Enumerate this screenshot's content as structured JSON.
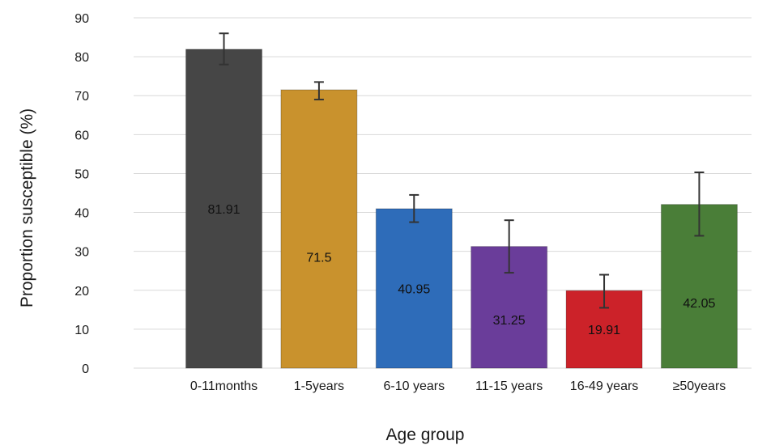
{
  "chart_data": {
    "type": "bar",
    "title": "",
    "xlabel": "Age group",
    "ylabel": "Proportion susceptible (%)",
    "ylim": [
      0,
      90
    ],
    "yticks": [
      0,
      10,
      20,
      30,
      40,
      50,
      60,
      70,
      80,
      90
    ],
    "yticklabels": [
      "0",
      "10",
      "20",
      "30",
      "40",
      "50",
      "60",
      "70",
      "80",
      "90"
    ],
    "grid": true,
    "legend": "none",
    "categories": [
      "0-11months",
      "1-5years",
      "6-10 years",
      "11-15 years",
      "16-49 years",
      "≥50years"
    ],
    "values": [
      81.91,
      71.5,
      40.95,
      31.25,
      19.91,
      42.05
    ],
    "data_labels": [
      "81.91",
      "71.5",
      "40.95",
      "31.25",
      "19.91",
      "42.05"
    ],
    "error_low": [
      78,
      69,
      37.5,
      24.5,
      15.5,
      34
    ],
    "error_high": [
      86,
      73.5,
      44.5,
      38,
      24,
      50.3
    ],
    "colors": [
      "#464646",
      "#c9922d",
      "#2e6cb9",
      "#6a3d9a",
      "#cc2229",
      "#4a7e38"
    ]
  }
}
